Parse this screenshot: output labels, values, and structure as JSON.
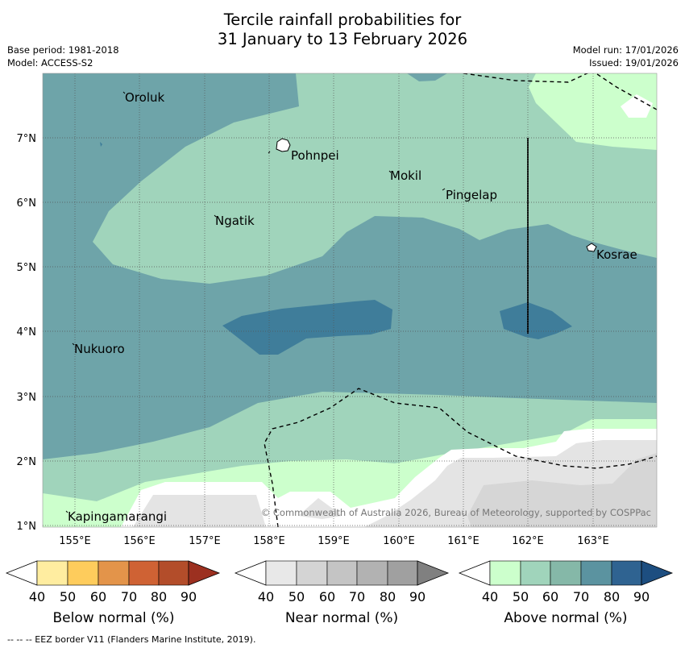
{
  "header": {
    "title_line1": "Tercile rainfall probabilities for",
    "title_line2": "31 January to 13 February 2026",
    "base_period": "Base period: 1981-2018",
    "model": "Model: ACCESS-S2",
    "model_run": "Model run: 17/01/2026",
    "issued": "Issued: 19/01/2026"
  },
  "map": {
    "x_ticks": [
      "155°E",
      "156°E",
      "157°E",
      "158°E",
      "159°E",
      "160°E",
      "161°E",
      "162°E",
      "163°E"
    ],
    "y_ticks": [
      "7°N",
      "6°N",
      "5°N",
      "4°N",
      "3°N",
      "2°N",
      "1°N"
    ],
    "places": [
      "Oroluk",
      "Pohnpei",
      "Mokil",
      "Pingelap",
      "Ngatik",
      "Kosrae",
      "Nukuoro",
      "Kapingamarangi"
    ],
    "copyright": "© Commonwealth of Australia 2026, Bureau of Meteorology, supported by COSPPac"
  },
  "colorbars": {
    "tick_labels": [
      "40",
      "50",
      "60",
      "70",
      "80",
      "90"
    ],
    "below": {
      "label": "Below normal (%)",
      "colors": [
        "#ffeda0",
        "#fecc5c",
        "#e3944a",
        "#cf6234",
        "#b34d2a",
        "#9c3020"
      ]
    },
    "near": {
      "label": "Near normal (%)",
      "colors": [
        "#e8e8e8",
        "#d4d4d4",
        "#c4c4c4",
        "#b2b2b2",
        "#a0a0a0",
        "#808080"
      ]
    },
    "above": {
      "label": "Above normal (%)",
      "colors": [
        "#ccffcc",
        "#a0d4bb",
        "#85b8a8",
        "#5b93a0",
        "#2f6391",
        "#1d4e80"
      ]
    }
  },
  "footer": {
    "eez_note": "--  --  -- EEZ border V11 (Flanders Marine Institute, 2019)."
  }
}
